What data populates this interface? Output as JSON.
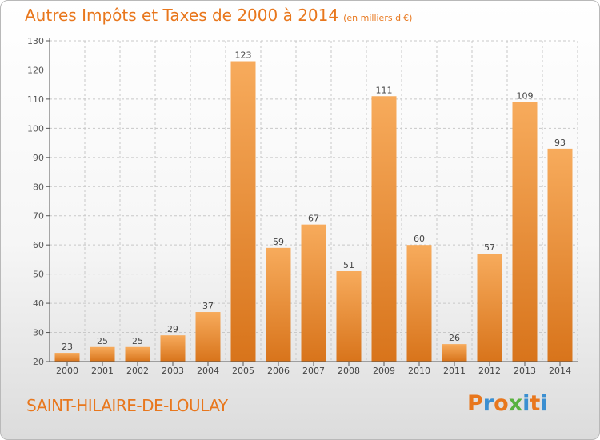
{
  "header": {
    "title": "Autres Impôts et Taxes de 2000 à 2014",
    "unit": "(en milliers d'€)"
  },
  "footer": {
    "commune": "SAINT-HILAIRE-DE-LOULAY",
    "logo": {
      "letters": [
        "P",
        "r",
        "o",
        "x",
        "i",
        "t",
        "i"
      ],
      "colors": [
        "#e8771d",
        "#3b8fd1",
        "#e8771d",
        "#59b23f",
        "#3b8fd1",
        "#e8771d",
        "#3b8fd1"
      ]
    }
  },
  "colors": {
    "accent": "#e8771d",
    "bar_top": "#f7ab5c",
    "bar_bottom": "#d8741b",
    "grid": "#c8c8c8"
  },
  "chart_data": {
    "type": "bar",
    "categories": [
      "2000",
      "2001",
      "2002",
      "2003",
      "2004",
      "2005",
      "2006",
      "2007",
      "2008",
      "2009",
      "2010",
      "2011",
      "2012",
      "2013",
      "2014"
    ],
    "values": [
      23,
      25,
      25,
      29,
      37,
      123,
      59,
      67,
      51,
      111,
      60,
      26,
      57,
      109,
      93
    ],
    "data_labels": [
      "23",
      "25",
      "25",
      "29",
      "37",
      "123",
      "59",
      "67",
      "51",
      "111",
      "60",
      "26",
      "57",
      "109",
      "93"
    ],
    "ylim": [
      20,
      130
    ],
    "yticks": [
      20,
      30,
      40,
      50,
      60,
      70,
      80,
      90,
      100,
      110,
      120,
      130
    ],
    "grid": true
  }
}
